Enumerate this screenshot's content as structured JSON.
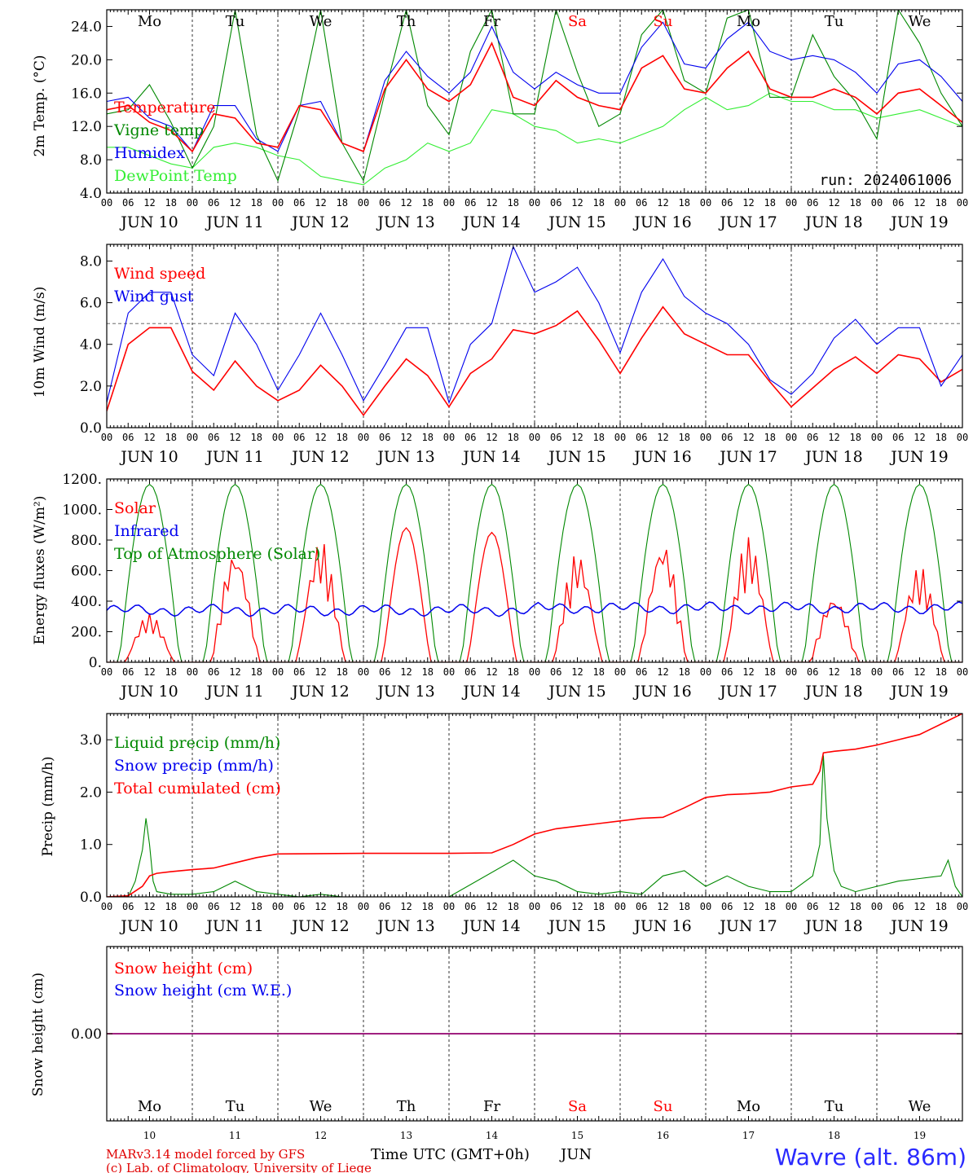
{
  "chart_data": [
    {
      "type": "line",
      "id": "temp",
      "ylabel": "2m Temp. (°C)",
      "ylim": [
        4.0,
        26.0
      ],
      "yticks": [
        4.0,
        8.0,
        12.0,
        16.0,
        20.0,
        24.0
      ],
      "ytick_labels": [
        "4.0",
        "8.0",
        "12.0",
        "16.0",
        "20.0",
        "24.0"
      ],
      "annotation": "run: 2024061006",
      "series": [
        {
          "name": "Temperature",
          "color": "#ff0000",
          "x": [
            0,
            6,
            12,
            18,
            24,
            30,
            36,
            42,
            48,
            54,
            60,
            66,
            72,
            78,
            84,
            90,
            96,
            102,
            108,
            114,
            120,
            126,
            132,
            138,
            144,
            150,
            156,
            162,
            168,
            174,
            180,
            186,
            192,
            198,
            204,
            210,
            216,
            222,
            228,
            234,
            240
          ],
          "y": [
            14.0,
            14.5,
            12.5,
            11.5,
            9.0,
            13.5,
            13.0,
            10.0,
            9.5,
            14.5,
            14.0,
            10.0,
            9.0,
            16.5,
            20.0,
            16.5,
            15.0,
            17.0,
            22.0,
            15.5,
            14.5,
            17.5,
            15.5,
            14.5,
            14.0,
            19.0,
            20.5,
            16.5,
            16.0,
            19.0,
            21.0,
            16.5,
            15.5,
            15.5,
            16.5,
            15.5,
            13.5,
            16.0,
            16.5,
            14.5,
            12.5
          ]
        },
        {
          "name": "Vigne temp",
          "color": "#008800",
          "x": [
            0,
            6,
            12,
            18,
            24,
            30,
            36,
            42,
            48,
            54,
            60,
            66,
            72,
            78,
            84,
            90,
            96,
            102,
            108,
            114,
            120,
            126,
            132,
            138,
            144,
            150,
            156,
            162,
            168,
            174,
            180,
            186,
            192,
            198,
            204,
            210,
            216,
            222,
            228,
            234,
            240
          ],
          "y": [
            13.5,
            14.0,
            17.0,
            12.5,
            7.0,
            12.0,
            26.0,
            11.0,
            5.5,
            14.0,
            26.0,
            10.0,
            5.5,
            16.0,
            26.0,
            14.5,
            11.0,
            21.0,
            26.0,
            13.5,
            13.5,
            26.0,
            18.5,
            12.0,
            13.5,
            23.0,
            26.0,
            17.5,
            16.0,
            25.0,
            26.0,
            15.5,
            15.5,
            23.0,
            18.0,
            15.0,
            10.5,
            26.0,
            22.0,
            16.0,
            12.0
          ]
        },
        {
          "name": "Humidex",
          "color": "#0000ee",
          "x": [
            0,
            6,
            12,
            18,
            24,
            30,
            36,
            42,
            48,
            54,
            60,
            66,
            72,
            78,
            84,
            90,
            96,
            102,
            108,
            114,
            120,
            126,
            132,
            138,
            144,
            150,
            156,
            162,
            168,
            174,
            180,
            186,
            192,
            198,
            204,
            210,
            216,
            222,
            228,
            234,
            240
          ],
          "y": [
            15.0,
            15.5,
            13.0,
            12.0,
            9.0,
            14.5,
            14.5,
            10.5,
            9.0,
            14.5,
            15.0,
            10.0,
            9.0,
            17.5,
            21.0,
            18.0,
            16.0,
            18.5,
            24.0,
            18.5,
            16.5,
            18.5,
            17.0,
            16.0,
            16.0,
            21.5,
            24.5,
            19.5,
            19.0,
            22.5,
            24.5,
            21.0,
            20.0,
            20.5,
            20.0,
            18.5,
            16.0,
            19.5,
            20.0,
            18.0,
            15.0
          ]
        },
        {
          "name": "DewPoint Temp",
          "color": "#33ee33",
          "x": [
            0,
            6,
            12,
            18,
            24,
            30,
            36,
            42,
            48,
            54,
            60,
            66,
            72,
            78,
            84,
            90,
            96,
            102,
            108,
            114,
            120,
            126,
            132,
            138,
            144,
            150,
            156,
            162,
            168,
            174,
            180,
            186,
            192,
            198,
            204,
            210,
            216,
            222,
            228,
            234,
            240
          ],
          "y": [
            9.5,
            9.5,
            8.5,
            7.5,
            7.0,
            9.5,
            10.0,
            9.5,
            8.5,
            8.0,
            6.0,
            5.5,
            5.0,
            7.0,
            8.0,
            10.0,
            9.0,
            10.0,
            14.0,
            13.5,
            12.0,
            11.5,
            10.0,
            10.5,
            10.0,
            11.0,
            12.0,
            14.0,
            15.5,
            14.0,
            14.5,
            16.0,
            15.0,
            15.0,
            14.0,
            14.0,
            13.0,
            13.5,
            14.0,
            13.0,
            12.0
          ]
        }
      ]
    },
    {
      "type": "line",
      "id": "wind",
      "ylabel": "10m Wind (m/s)",
      "ylim": [
        0.0,
        8.8
      ],
      "yticks": [
        0.0,
        2.0,
        4.0,
        6.0,
        8.0
      ],
      "ytick_labels": [
        "0.0",
        "2.0",
        "4.0",
        "6.0",
        "8.0"
      ],
      "reference_line": 5.0,
      "series": [
        {
          "name": "Wind speed",
          "color": "#ff0000",
          "x": [
            0,
            6,
            12,
            18,
            24,
            30,
            36,
            42,
            48,
            54,
            60,
            66,
            72,
            78,
            84,
            90,
            96,
            102,
            108,
            114,
            120,
            126,
            132,
            138,
            144,
            150,
            156,
            162,
            168,
            174,
            180,
            186,
            192,
            198,
            204,
            210,
            216,
            222,
            228,
            234,
            240
          ],
          "y": [
            0.8,
            4.0,
            4.8,
            4.8,
            2.7,
            1.8,
            3.2,
            2.0,
            1.3,
            1.8,
            3.0,
            2.0,
            0.6,
            2.0,
            3.3,
            2.5,
            1.0,
            2.6,
            3.3,
            4.7,
            4.5,
            4.9,
            5.6,
            4.2,
            2.6,
            4.3,
            5.8,
            4.5,
            4.0,
            3.5,
            3.5,
            2.2,
            1.0,
            1.9,
            2.8,
            3.4,
            2.6,
            3.5,
            3.3,
            2.2,
            2.8
          ]
        },
        {
          "name": "Wind gust",
          "color": "#0000ee",
          "x": [
            0,
            6,
            12,
            18,
            24,
            30,
            36,
            42,
            48,
            54,
            60,
            66,
            72,
            78,
            84,
            90,
            96,
            102,
            108,
            114,
            120,
            126,
            132,
            138,
            144,
            150,
            156,
            162,
            168,
            174,
            180,
            186,
            192,
            198,
            204,
            210,
            216,
            222,
            228,
            234,
            240
          ],
          "y": [
            1.2,
            5.5,
            6.5,
            6.5,
            3.5,
            2.5,
            5.5,
            4.0,
            1.8,
            3.5,
            5.5,
            3.5,
            1.3,
            3.0,
            4.8,
            4.8,
            1.2,
            4.0,
            5.0,
            8.7,
            6.5,
            7.0,
            7.7,
            6.0,
            3.6,
            6.5,
            8.1,
            6.3,
            5.5,
            5.0,
            4.0,
            2.3,
            1.6,
            2.6,
            4.3,
            5.2,
            4.0,
            4.8,
            4.8,
            2.0,
            3.5
          ]
        }
      ]
    },
    {
      "type": "line",
      "id": "energy",
      "ylabel": "Energy fluxes (W/m²)",
      "ylim": [
        0,
        1200
      ],
      "yticks": [
        0,
        200,
        400,
        600,
        800,
        1000,
        1200
      ],
      "ytick_labels": [
        "0.",
        "200.",
        "400.",
        "600.",
        "800.",
        "1000.",
        "1200."
      ],
      "solar_daily_peaks": [
        320,
        740,
        800,
        880,
        850,
        720,
        800,
        820,
        440,
        630
      ],
      "infrared_typical": 340,
      "toa_peak": 1165,
      "series": [
        {
          "name": "Solar",
          "color": "#ff0000"
        },
        {
          "name": "Infrared",
          "color": "#0000ee"
        },
        {
          "name": "Top of Atmosphere (Solar)",
          "color": "#008800"
        }
      ]
    },
    {
      "type": "line",
      "id": "precip",
      "ylabel": "Precip (mm/h)",
      "ylim": [
        0.0,
        3.5
      ],
      "yticks": [
        0.0,
        1.0,
        2.0,
        3.0
      ],
      "ytick_labels": [
        "0.0",
        "1.0",
        "2.0",
        "3.0"
      ],
      "series": [
        {
          "name": "Liquid precip (mm/h)",
          "color": "#008800",
          "x": [
            0,
            6,
            8,
            10,
            11,
            12,
            13,
            14,
            18,
            24,
            30,
            36,
            42,
            48,
            54,
            60,
            66,
            72,
            96,
            114,
            120,
            126,
            132,
            138,
            144,
            150,
            156,
            162,
            168,
            174,
            180,
            186,
            192,
            198,
            200,
            201,
            202,
            204,
            206,
            210,
            216,
            222,
            228,
            234,
            236,
            238,
            240
          ],
          "y": [
            0.0,
            0.0,
            0.3,
            0.9,
            1.5,
            1.0,
            0.3,
            0.1,
            0.05,
            0.05,
            0.1,
            0.3,
            0.1,
            0.05,
            0.0,
            0.05,
            0.0,
            0.0,
            0.0,
            0.7,
            0.4,
            0.3,
            0.1,
            0.05,
            0.1,
            0.05,
            0.4,
            0.5,
            0.2,
            0.4,
            0.2,
            0.1,
            0.1,
            0.4,
            1.0,
            2.7,
            1.5,
            0.5,
            0.2,
            0.1,
            0.2,
            0.3,
            0.35,
            0.4,
            0.7,
            0.2,
            0.0
          ]
        },
        {
          "name": "Snow precip (mm/h)",
          "color": "#0000ee",
          "x": [
            0,
            240
          ],
          "y": [
            0.0,
            0.0
          ]
        },
        {
          "name": "Total cumulated (cm)",
          "color": "#ff0000",
          "x": [
            0,
            6,
            10,
            12,
            14,
            18,
            24,
            30,
            36,
            42,
            48,
            72,
            96,
            108,
            114,
            120,
            126,
            132,
            138,
            144,
            150,
            156,
            162,
            168,
            174,
            180,
            186,
            192,
            198,
            200,
            201,
            204,
            210,
            216,
            222,
            228,
            234,
            240
          ],
          "y": [
            0.0,
            0.02,
            0.2,
            0.4,
            0.45,
            0.48,
            0.52,
            0.55,
            0.65,
            0.75,
            0.82,
            0.83,
            0.83,
            0.84,
            1.0,
            1.2,
            1.3,
            1.35,
            1.4,
            1.45,
            1.5,
            1.52,
            1.7,
            1.9,
            1.95,
            1.97,
            2.0,
            2.1,
            2.15,
            2.4,
            2.75,
            2.78,
            2.82,
            2.9,
            3.0,
            3.1,
            3.3,
            3.5
          ]
        }
      ]
    },
    {
      "type": "line",
      "id": "snow",
      "ylabel": "Snow height (cm)",
      "ylim": [
        -1.0,
        1.0
      ],
      "yticks": [
        0.0
      ],
      "ytick_labels": [
        "0.00"
      ],
      "series": [
        {
          "name": "Snow height (cm)",
          "color": "#ff0000",
          "x": [
            0,
            240
          ],
          "y": [
            0.0,
            0.0
          ]
        },
        {
          "name": "Snow height (cm W.E.)",
          "color": "#0000ee",
          "x": [
            0,
            240
          ],
          "y": [
            0.0,
            0.0
          ]
        }
      ]
    }
  ],
  "time_axis": {
    "hour_labels": [
      "00",
      "06",
      "12",
      "18"
    ],
    "date_labels": [
      "JUN 10",
      "JUN 11",
      "JUN 12",
      "JUN 13",
      "JUN 14",
      "JUN 15",
      "JUN 16",
      "JUN 17",
      "JUN 18",
      "JUN 19"
    ],
    "weekdays": [
      "Mo",
      "Tu",
      "We",
      "Th",
      "Fr",
      "Sa",
      "Su",
      "Mo",
      "Tu",
      "We"
    ],
    "weekday_colors": [
      "#000000",
      "#000000",
      "#000000",
      "#000000",
      "#000000",
      "#ff0000",
      "#ff0000",
      "#000000",
      "#000000",
      "#000000"
    ],
    "day_numbers": [
      "10",
      "11",
      "12",
      "13",
      "14",
      "15",
      "16",
      "17",
      "18",
      "19"
    ],
    "bottom_label": "Time UTC (GMT+0h)",
    "month_label": "JUN"
  },
  "footer": {
    "model_line": "MARv3.14 model forced by GFS",
    "credit_line": "(c) Lab. of Climatology, University of Liege",
    "location": "Wavre (alt. 86m)"
  }
}
